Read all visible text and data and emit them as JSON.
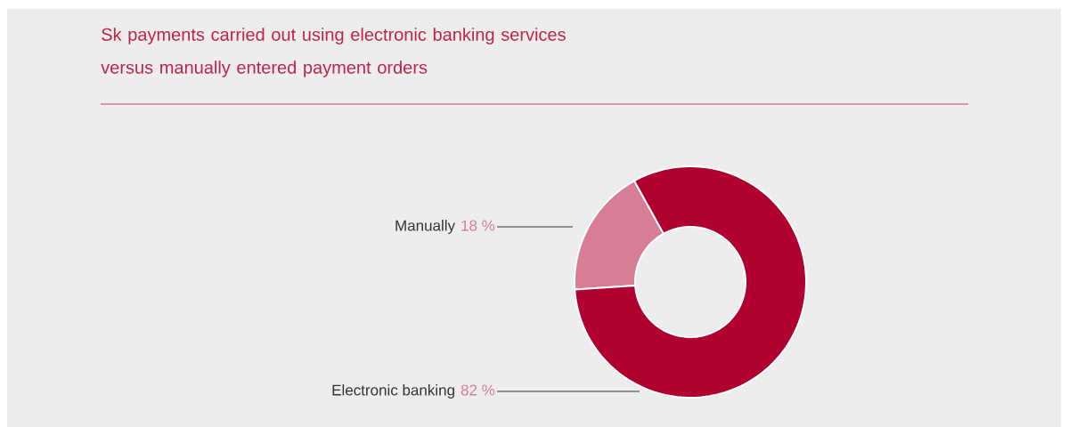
{
  "chart_data": {
    "type": "donut",
    "title": "Sk payments carried out using electronic banking services versus manually entered payment orders",
    "categories": [
      "Manually",
      "Electronic banking"
    ],
    "values": [
      18,
      82
    ],
    "colors": [
      "#d77d95",
      "#b0002f"
    ],
    "value_labels": [
      "18 %",
      "82 %"
    ]
  }
}
